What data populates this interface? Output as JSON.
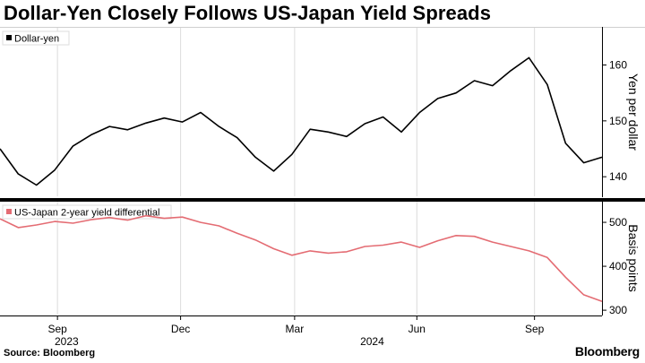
{
  "title": "Dollar-Yen Closely Follows US-Japan Yield Spreads",
  "source": "Source: Bloomberg",
  "brand": "Bloomberg",
  "colors": {
    "yen_line": "#000000",
    "spread_line": "#e46c73",
    "grid": "#dcdcdc"
  },
  "chart_data": [
    {
      "type": "line",
      "legend": "Dollar-yen",
      "ylabel": "Yen per dollar",
      "yticks": [
        140,
        150,
        160
      ],
      "ylim": [
        136.5,
        166.5
      ],
      "x": [
        0,
        2,
        4,
        6,
        8,
        10,
        12,
        14,
        16,
        18,
        20,
        22,
        24,
        26,
        28,
        30,
        32,
        34,
        36,
        38,
        40,
        42,
        44,
        46,
        48,
        50,
        52,
        54,
        56,
        58,
        60,
        62,
        64,
        66
      ],
      "values": [
        145.0,
        140.5,
        138.5,
        141.2,
        145.5,
        147.5,
        149.0,
        148.4,
        149.6,
        150.5,
        149.8,
        151.5,
        149.0,
        147.0,
        143.5,
        141.0,
        144.0,
        148.5,
        148.0,
        147.2,
        149.5,
        150.7,
        148.0,
        151.5,
        154.0,
        155.0,
        157.2,
        156.3,
        159.0,
        161.3,
        156.5,
        146.0,
        142.5,
        143.5
      ],
      "color": "#000000"
    },
    {
      "type": "line",
      "legend": "US-Japan 2-year yield differential",
      "ylabel": "Basis points",
      "yticks": [
        300,
        400,
        500
      ],
      "ylim": [
        290,
        545
      ],
      "x": [
        0,
        2,
        4,
        6,
        8,
        10,
        12,
        14,
        16,
        18,
        20,
        22,
        24,
        26,
        28,
        30,
        32,
        34,
        36,
        38,
        40,
        42,
        44,
        46,
        48,
        50,
        52,
        54,
        56,
        58,
        60,
        62,
        64,
        66
      ],
      "values": [
        508,
        488,
        494,
        502,
        498,
        506,
        511,
        505,
        515,
        509,
        512,
        500,
        492,
        475,
        460,
        440,
        425,
        435,
        430,
        433,
        445,
        448,
        455,
        443,
        458,
        470,
        468,
        455,
        445,
        435,
        420,
        375,
        335,
        320
      ],
      "color": "#e46c73"
    }
  ],
  "x_axis": {
    "range": [
      0,
      66
    ],
    "ticks": [
      {
        "x": 6.3,
        "label": "Sep"
      },
      {
        "x": 19.8,
        "label": "Dec"
      },
      {
        "x": 32.3,
        "label": "Mar"
      },
      {
        "x": 45.7,
        "label": "Jun"
      },
      {
        "x": 58.6,
        "label": "Sep"
      }
    ],
    "years": [
      {
        "x": 7.3,
        "label": "2023"
      },
      {
        "x": 40.8,
        "label": "2024"
      }
    ]
  }
}
